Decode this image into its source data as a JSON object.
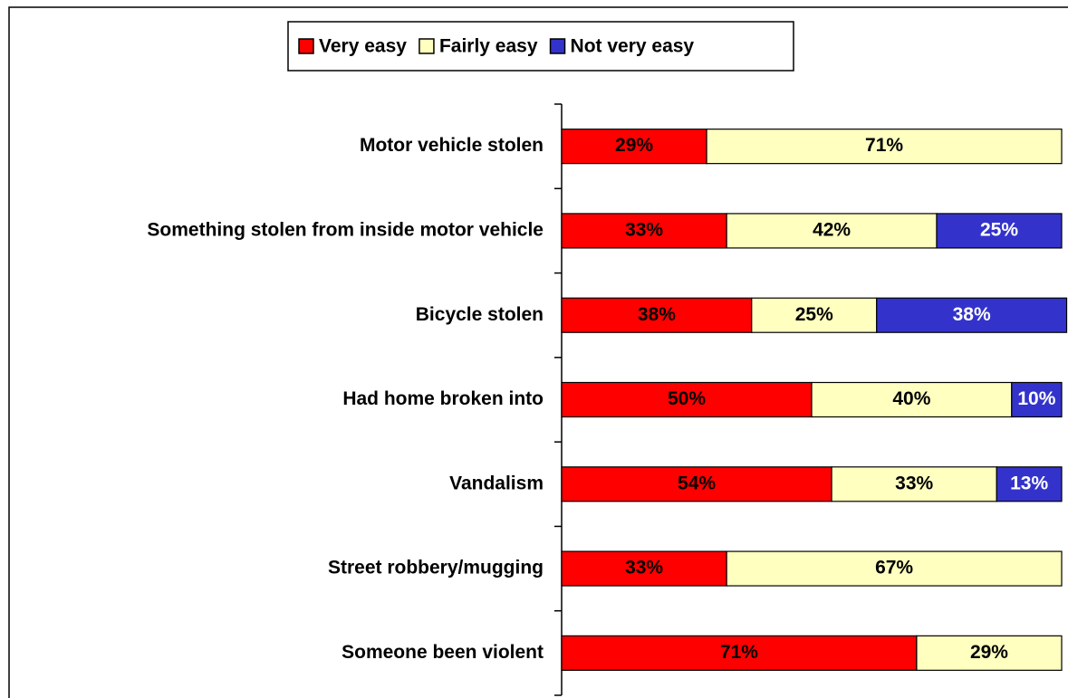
{
  "chart_data": {
    "type": "stacked_barh",
    "categories": [
      "Motor vehicle stolen",
      "Something stolen from inside motor vehicle",
      "Bicycle stolen",
      "Had home broken into",
      "Vandalism",
      "Street robbery/mugging",
      "Someone been violent"
    ],
    "series": [
      {
        "name": "Very easy",
        "color": "#ff0000",
        "values": [
          29,
          33,
          38,
          50,
          54,
          33,
          71
        ],
        "value_labels": [
          "29%",
          "33%",
          "38%",
          "50%",
          "54%",
          "33%",
          "71%"
        ]
      },
      {
        "name": "Fairly easy",
        "color": "#ffffc0",
        "values": [
          71,
          42,
          25,
          40,
          33,
          67,
          29
        ],
        "value_labels": [
          "71%",
          "42%",
          "25%",
          "40%",
          "33%",
          "67%",
          "29%"
        ]
      },
      {
        "name": "Not very easy",
        "color": "#3333cc",
        "values": [
          null,
          25,
          38,
          10,
          13,
          null,
          null
        ],
        "value_labels": [
          null,
          "25%",
          "38%",
          "10%",
          "13%",
          null,
          null
        ]
      }
    ],
    "xlim": [
      0,
      100
    ],
    "legend": "top"
  }
}
